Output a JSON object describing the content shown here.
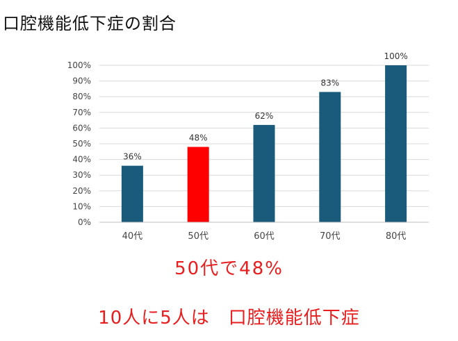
{
  "page": {
    "title": "口腔機能低下症の割合"
  },
  "chart_data": {
    "type": "bar",
    "categories": [
      "40代",
      "50代",
      "60代",
      "70代",
      "80代"
    ],
    "values": [
      36,
      48,
      62,
      83,
      100
    ],
    "data_labels": [
      "36%",
      "48%",
      "62%",
      "83%",
      "100%"
    ],
    "highlight_index": 1,
    "ylim": [
      0,
      100
    ],
    "yticks": [
      0,
      10,
      20,
      30,
      40,
      50,
      60,
      70,
      80,
      90,
      100
    ],
    "ytick_labels": [
      "0%",
      "10%",
      "20%",
      "30%",
      "40%",
      "50%",
      "60%",
      "70%",
      "80%",
      "90%",
      "100%"
    ],
    "grid": true,
    "legend": "none",
    "colors": {
      "bar": "#1a5a7a",
      "highlight": "#ff0000",
      "grid": "#d9d9d9",
      "highlight_label": "#ff0000"
    }
  },
  "captions": {
    "line1": "50代で48%",
    "line2": "10人に5人は　口腔機能低下症"
  }
}
